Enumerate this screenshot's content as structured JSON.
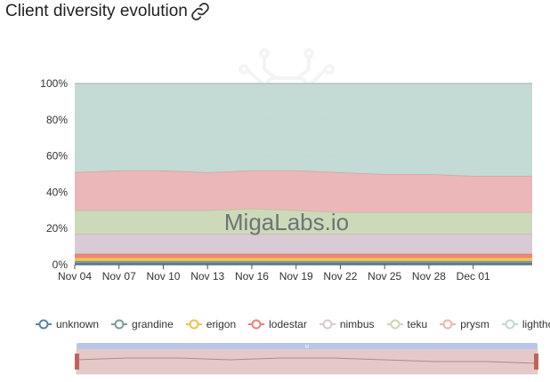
{
  "header": {
    "title": "Client diversity evolution",
    "link_icon": "link-icon"
  },
  "watermark": {
    "text": "MigaLabs.io"
  },
  "chart_data": {
    "type": "area",
    "stacked": true,
    "x": [
      "Nov 04",
      "Nov 07",
      "Nov 10",
      "Nov 13",
      "Nov 16",
      "Nov 19",
      "Nov 22",
      "Nov 25",
      "Nov 28",
      "Dec 01"
    ],
    "x_range": [
      "Nov 04",
      "Dec 05"
    ],
    "y_ticks": [
      "0%",
      "20%",
      "40%",
      "60%",
      "80%",
      "100%"
    ],
    "ylim": [
      0,
      100
    ],
    "grid": true,
    "legend_position": "bottom",
    "series": [
      {
        "name": "unknown",
        "color": "#5b83a8",
        "values": [
          1,
          1,
          1,
          1,
          1,
          1,
          1,
          1,
          1,
          1
        ]
      },
      {
        "name": "grandine",
        "color": "#7a9e94",
        "values": [
          1,
          1,
          1,
          1,
          1,
          1,
          1,
          1,
          1,
          1
        ]
      },
      {
        "name": "erigon",
        "color": "#f2c14e",
        "values": [
          2,
          2,
          2,
          2,
          2,
          2,
          2,
          2,
          2,
          2
        ]
      },
      {
        "name": "lodestar",
        "color": "#ef7f73",
        "values": [
          2,
          2,
          2,
          2,
          2,
          2,
          2,
          2,
          2,
          2
        ]
      },
      {
        "name": "nimbus",
        "color": "#d7c8d3",
        "values": [
          11,
          11,
          11,
          11,
          11,
          11,
          11,
          11,
          11,
          11
        ]
      },
      {
        "name": "teku",
        "color": "#c9d8b5",
        "values": [
          13,
          13,
          13,
          13,
          14,
          13,
          12,
          12,
          12,
          12
        ]
      },
      {
        "name": "prysm",
        "color": "#ebb3b5",
        "values": [
          21,
          22,
          22,
          21,
          21,
          22,
          22,
          21,
          21,
          20
        ]
      },
      {
        "name": "lighthouse",
        "color": "#c0d8d3",
        "values": [
          49,
          48,
          48,
          49,
          48,
          48,
          49,
          50,
          50,
          51
        ]
      }
    ]
  },
  "data_zoom": {
    "handle_label": "III",
    "range_start_pct": 0,
    "range_end_pct": 100
  }
}
